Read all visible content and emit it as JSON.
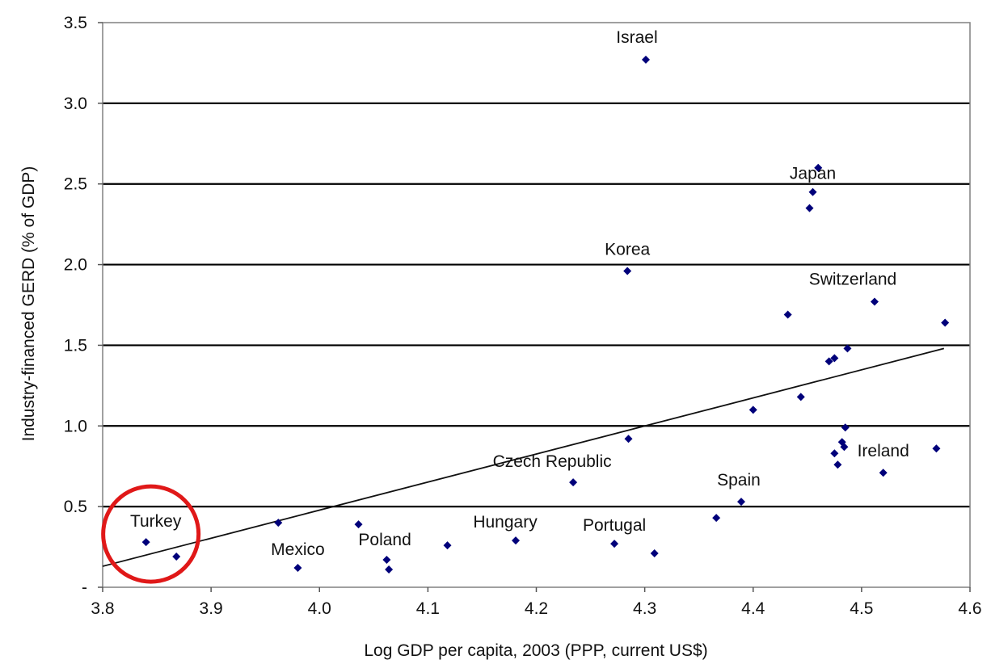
{
  "chart_data": {
    "type": "scatter",
    "title": "",
    "xlabel": "Log GDP per capita, 2003 (PPP, current US$)",
    "ylabel": "Industry-financed GERD (% of GDP)",
    "xlim": [
      3.8,
      4.6
    ],
    "ylim": [
      0,
      3.5
    ],
    "x_ticks": [
      3.8,
      3.9,
      4.0,
      4.1,
      4.2,
      4.3,
      4.4,
      4.5,
      4.6
    ],
    "x_tick_labels": [
      "3.8",
      "3.9",
      "4.0",
      "4.1",
      "4.2",
      "4.3",
      "4.4",
      "4.5",
      "4.6"
    ],
    "y_ticks": [
      0,
      0.5,
      1.0,
      1.5,
      2.0,
      2.5,
      3.0,
      3.5
    ],
    "y_tick_labels": [
      "-",
      "0.5",
      "1.0",
      "1.5",
      "2.0",
      "2.5",
      "3.0",
      "3.5"
    ],
    "grid": "horizontal",
    "series_color": "#00007a",
    "points": [
      {
        "x": 3.84,
        "y": 0.28,
        "label": "Turkey"
      },
      {
        "x": 3.868,
        "y": 0.19
      },
      {
        "x": 3.962,
        "y": 0.4
      },
      {
        "x": 3.98,
        "y": 0.12,
        "label": "Mexico"
      },
      {
        "x": 4.036,
        "y": 0.39
      },
      {
        "x": 4.062,
        "y": 0.17
      },
      {
        "x": 4.064,
        "y": 0.11,
        "label": "Poland"
      },
      {
        "x": 4.118,
        "y": 0.26
      },
      {
        "x": 4.181,
        "y": 0.29,
        "label": "Hungary"
      },
      {
        "x": 4.234,
        "y": 0.65,
        "label": "Czech Republic"
      },
      {
        "x": 4.272,
        "y": 0.27,
        "label": "Portugal"
      },
      {
        "x": 4.285,
        "y": 0.92
      },
      {
        "x": 4.284,
        "y": 1.96,
        "label": "Korea"
      },
      {
        "x": 4.301,
        "y": 3.27,
        "label": "Israel"
      },
      {
        "x": 4.309,
        "y": 0.21
      },
      {
        "x": 4.366,
        "y": 0.43
      },
      {
        "x": 4.389,
        "y": 0.53,
        "label": "Spain"
      },
      {
        "x": 4.4,
        "y": 1.1
      },
      {
        "x": 4.432,
        "y": 1.69
      },
      {
        "x": 4.444,
        "y": 1.18
      },
      {
        "x": 4.452,
        "y": 2.35
      },
      {
        "x": 4.455,
        "y": 2.45,
        "label": "Japan"
      },
      {
        "x": 4.46,
        "y": 2.6
      },
      {
        "x": 4.47,
        "y": 1.4
      },
      {
        "x": 4.475,
        "y": 1.42
      },
      {
        "x": 4.475,
        "y": 0.83
      },
      {
        "x": 4.478,
        "y": 0.76
      },
      {
        "x": 4.482,
        "y": 0.9
      },
      {
        "x": 4.484,
        "y": 0.87
      },
      {
        "x": 4.485,
        "y": 0.99
      },
      {
        "x": 4.487,
        "y": 1.48
      },
      {
        "x": 4.512,
        "y": 1.77,
        "label": "Switzerland"
      },
      {
        "x": 4.52,
        "y": 0.71,
        "label": "Ireland"
      },
      {
        "x": 4.569,
        "y": 0.86
      },
      {
        "x": 4.577,
        "y": 1.64
      }
    ],
    "trendline": {
      "x": [
        3.8,
        4.576
      ],
      "y": [
        0.13,
        1.48
      ]
    },
    "annotation": {
      "type": "circle",
      "target": "Turkey",
      "color": "#e01818"
    }
  }
}
